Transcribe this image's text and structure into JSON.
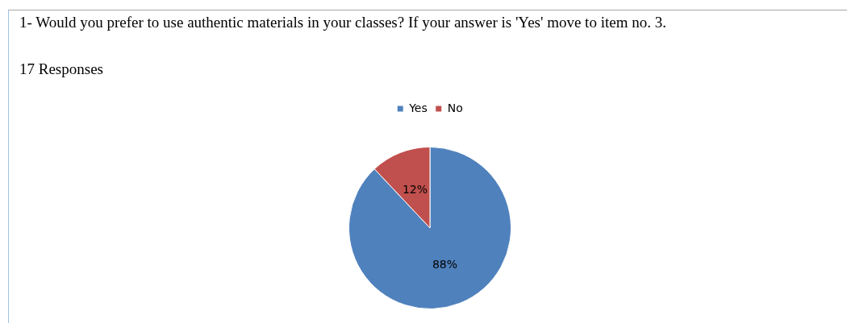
{
  "chart_data": {
    "type": "pie",
    "title": "1- Would you prefer to use authentic materials in your classes? If your answer is 'Yes' move to item no. 3.",
    "subtitle": "17 Responses",
    "categories": [
      "Yes",
      "No"
    ],
    "values": [
      88,
      12
    ],
    "colors": [
      "#4f81bd",
      "#c0504d"
    ],
    "value_labels": [
      "88%",
      "12%"
    ],
    "legend": "top"
  }
}
